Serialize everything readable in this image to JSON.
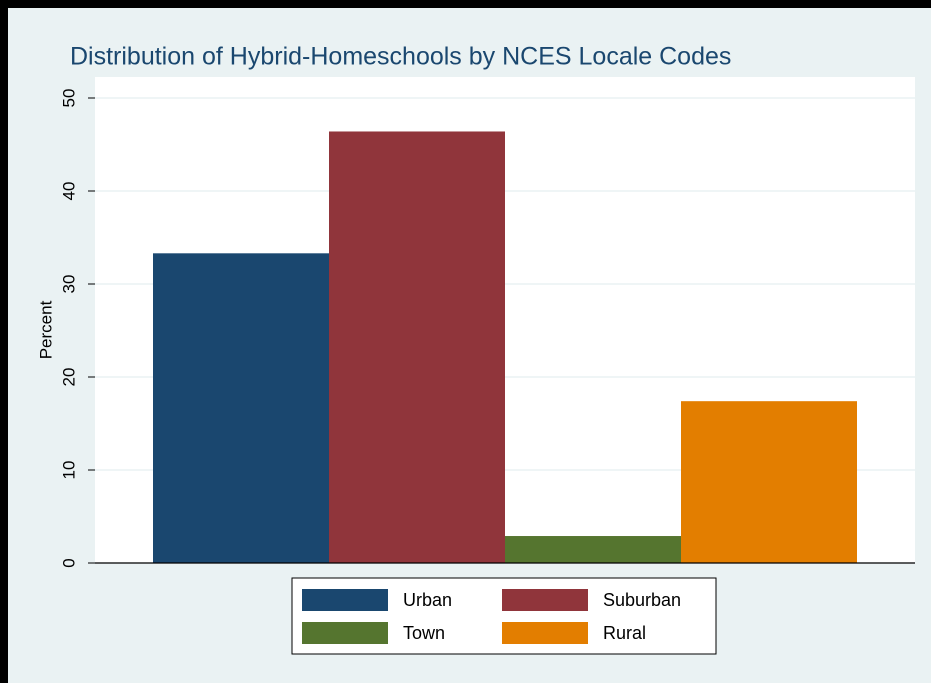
{
  "chart_data": {
    "type": "bar",
    "title": "Distribution of Hybrid-Homeschools by NCES Locale Codes",
    "y_label": "Percent",
    "series": [
      {
        "name": "Urban",
        "color": "#1a476f",
        "values": [
          33.3
        ]
      },
      {
        "name": "Suburban",
        "color": "#90353b",
        "values": [
          46.4
        ]
      },
      {
        "name": "Town",
        "color": "#55752f",
        "values": [
          2.9
        ]
      },
      {
        "name": "Rural",
        "color": "#e37e00",
        "values": [
          17.4
        ]
      }
    ],
    "ylim": [
      0,
      50
    ],
    "yticks": [
      0,
      10,
      20,
      30,
      40,
      50
    ],
    "grid": true
  }
}
